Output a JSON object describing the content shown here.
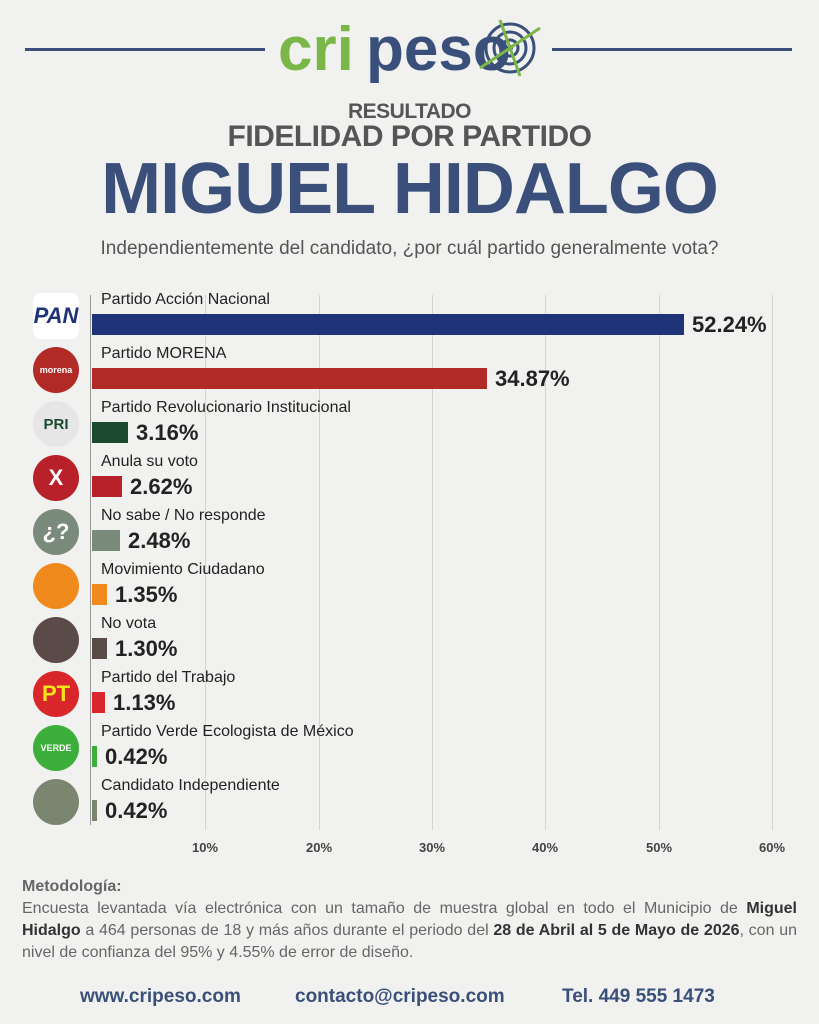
{
  "brand": {
    "logo_text_part1": "cri",
    "logo_text_part2": "peso",
    "accent_green": "#7ab648",
    "accent_blue": "#3a4f7a"
  },
  "header": {
    "line1": "RESULTADO",
    "line2": "FIDELIDAD POR PARTIDO",
    "line3": "MIGUEL HIDALGO",
    "question": "Independientemente del candidato, ¿por cuál partido generalmente vota?"
  },
  "chart_data": {
    "type": "bar",
    "orientation": "horizontal",
    "xlim": [
      0,
      60
    ],
    "ticks": [
      "10%",
      "20%",
      "30%",
      "40%",
      "50%",
      "60%"
    ],
    "tick_values": [
      10,
      20,
      30,
      40,
      50,
      60
    ],
    "grid": true,
    "categories": [
      "Partido Acción Nacional",
      "Partido MORENA",
      "Partido Revolucionario Institucional",
      "Anula su voto",
      "No sabe / No responde",
      "Movimiento Ciudadano",
      "No vota",
      "Partido del Trabajo",
      "Partido Verde Ecologista de México",
      "Candidato Independiente"
    ],
    "values": [
      52.24,
      34.87,
      3.16,
      2.62,
      2.48,
      1.35,
      1.3,
      1.13,
      0.42,
      0.42
    ],
    "value_labels": [
      "52.24%",
      "34.87%",
      "3.16%",
      "2.62%",
      "2.48%",
      "1.35%",
      "1.30%",
      "1.13%",
      "0.42%",
      "0.42%"
    ],
    "colors": [
      "#1e3378",
      "#b22a25",
      "#1c4a2e",
      "#b8202a",
      "#7a8b7c",
      "#f08a1c",
      "#5a4a48",
      "#d8262a",
      "#3cae3a",
      "#7b8670"
    ],
    "icons": [
      {
        "name": "pan-logo-icon",
        "text": "PAN",
        "bg": "#ffffff",
        "fg": "#1e3378"
      },
      {
        "name": "morena-logo-icon",
        "text": "morena",
        "bg": "#b22a25",
        "fg": "#ffffff"
      },
      {
        "name": "pri-logo-icon",
        "text": "PRI",
        "bg": "#e6e6e6",
        "fg": "#1c4a2e"
      },
      {
        "name": "x-cross-icon",
        "text": "X",
        "bg": "#b8202a",
        "fg": "#ffffff"
      },
      {
        "name": "question-icon",
        "text": "¿?",
        "bg": "#7a8b7c",
        "fg": "#ffffff"
      },
      {
        "name": "movimiento-ciudadano-logo-icon",
        "text": "",
        "bg": "#f08a1c",
        "fg": "#ffffff"
      },
      {
        "name": "ballot-box-icon",
        "text": "",
        "bg": "#5a4a48",
        "fg": "#ffffff"
      },
      {
        "name": "pt-logo-icon",
        "text": "PT",
        "bg": "#d8262a",
        "fg": "#f7e21a"
      },
      {
        "name": "verde-logo-icon",
        "text": "VERDE",
        "bg": "#3cae3a",
        "fg": "#ffffff"
      },
      {
        "name": "person-icon",
        "text": "",
        "bg": "#7b8670",
        "fg": "#ffffff"
      }
    ]
  },
  "methodology": {
    "title": "Metodología:",
    "p1": "Encuesta levantada vía electrónica con un tamaño de muestra global en todo el Municipio de ",
    "b1": "Miguel Hidalgo",
    "p2": " a 464 personas de 18 y más años durante el periodo del ",
    "b2": "28 de Abril al 5 de Mayo de 2026",
    "p3": ", con un nivel de confianza del 95% y 4.55% de error de diseño."
  },
  "footer": {
    "website": "www.cripeso.com",
    "email": "contacto@cripeso.com",
    "phone": "Tel. 449 555 1473"
  }
}
